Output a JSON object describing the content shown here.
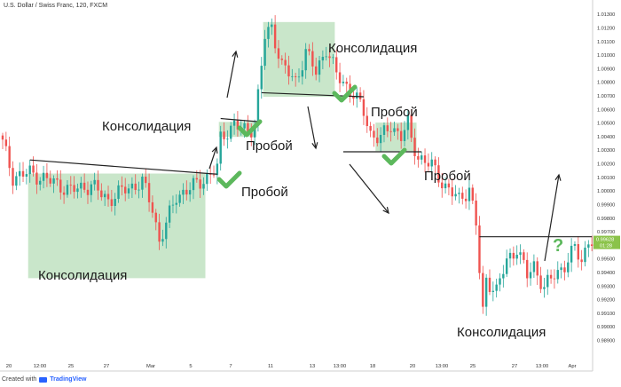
{
  "header": {
    "symbol": "U.S. Dollar / Swiss Franc, 120, FXCM"
  },
  "footer": {
    "created_with": "Created with",
    "brand": "TradingView"
  },
  "annotations": {
    "consolidation": "Консолидация",
    "breakout": "Пробой",
    "question": "?"
  },
  "colors": {
    "up_candle": "#26a69a",
    "down_candle": "#ef5350",
    "consolidation_box": "#a5d6a7",
    "check": "#5cb85c",
    "price_tag": "#8bc34a"
  },
  "chart_data": {
    "type": "candlestick",
    "instrument": "U.S. Dollar / Swiss Franc",
    "timeframe": "120",
    "source": "FXCM",
    "ylim": [
      0.9875,
      1.0135
    ],
    "y_ticks": [
      "1.01300",
      "1.01200",
      "1.01100",
      "1.01000",
      "1.00900",
      "1.00800",
      "1.00700",
      "1.00600",
      "1.00500",
      "1.00400",
      "1.00300",
      "1.00200",
      "1.00100",
      "1.00000",
      "0.99900",
      "0.99800",
      "0.99700",
      "0.99600",
      "0.99500",
      "0.99400",
      "0.99300",
      "0.99200",
      "0.99100",
      "0.99000",
      "0.98900"
    ],
    "x_ticks": [
      "20",
      "12:00",
      "25",
      "27",
      "Mar",
      "5",
      "7",
      "11",
      "13",
      "13:00",
      "18",
      "20",
      "13:00",
      "25",
      "27",
      "13:00",
      "Apr"
    ],
    "last_price": "0.99628",
    "last_price_sub": "01:28",
    "price_path": [
      [
        0,
        1.0035
      ],
      [
        3,
        1.001
      ],
      [
        8,
        1.0013
      ],
      [
        14,
        1.0007
      ],
      [
        20,
        1.0
      ],
      [
        26,
        1.0004
      ],
      [
        31,
        0.9993
      ],
      [
        36,
        1.0001
      ],
      [
        41,
        1.0006
      ],
      [
        44,
        0.9987
      ],
      [
        46,
        0.9963
      ],
      [
        48,
        0.9975
      ],
      [
        51,
        0.9996
      ],
      [
        56,
        1.0003
      ],
      [
        60,
        1.001
      ],
      [
        63,
        1.0016
      ],
      [
        64,
        1.0038
      ],
      [
        66,
        1.0044
      ],
      [
        68,
        1.0049
      ],
      [
        70,
        1.0045
      ],
      [
        72,
        1.0043
      ],
      [
        74,
        1.0049
      ],
      [
        77,
        1.0113
      ],
      [
        79,
        1.012
      ],
      [
        82,
        1.0092
      ],
      [
        86,
        1.008
      ],
      [
        89,
        1.0102
      ],
      [
        92,
        1.0087
      ],
      [
        95,
        1.0105
      ],
      [
        98,
        1.0085
      ],
      [
        101,
        1.0077
      ],
      [
        103,
        1.0071
      ],
      [
        106,
        1.0058
      ],
      [
        108,
        1.0042
      ],
      [
        111,
        1.0038
      ],
      [
        114,
        1.0048
      ],
      [
        117,
        1.004
      ],
      [
        119,
        1.0049
      ],
      [
        120,
        1.0037
      ],
      [
        122,
        1.0025
      ],
      [
        126,
        1.0018
      ],
      [
        130,
        1.0003
      ],
      [
        134,
        0.9993
      ],
      [
        137,
        1.0002
      ],
      [
        139,
        0.9975
      ],
      [
        140,
        0.994
      ],
      [
        141,
        0.991
      ],
      [
        142,
        0.9935
      ],
      [
        145,
        0.9926
      ],
      [
        148,
        0.9948
      ],
      [
        151,
        0.9958
      ],
      [
        154,
        0.9937
      ],
      [
        156,
        0.9945
      ],
      [
        159,
        0.9928
      ],
      [
        162,
        0.9938
      ],
      [
        165,
        0.9945
      ],
      [
        168,
        0.9957
      ],
      [
        170,
        0.9949
      ],
      [
        172,
        0.9963
      ]
    ],
    "consolidation_zones": [
      {
        "i0": 8,
        "i1": 59,
        "low": 0.99355,
        "high": 1.00125
      },
      {
        "i0": 64,
        "i1": 74,
        "low": 1.00395,
        "high": 1.00505
      },
      {
        "i0": 77,
        "i1": 97,
        "low": 1.0069,
        "high": 1.0124
      },
      {
        "i0": 110,
        "i1": 121,
        "low": 1.0029,
        "high": 1.005
      }
    ],
    "levels": [
      {
        "i0": 8,
        "i1": 63,
        "p0": 1.00225,
        "p1": 1.0012
      },
      {
        "i0": 64,
        "i1": 76,
        "p0": 1.0053,
        "p1": 1.00505
      },
      {
        "i0": 76,
        "i1": 106,
        "p0": 1.0072,
        "p1": 1.0069
      },
      {
        "i0": 100,
        "i1": 123,
        "p0": 1.00285,
        "p1": 1.00285
      },
      {
        "i0": 140,
        "i1": 173,
        "p0": 0.9966,
        "p1": 0.9966
      }
    ]
  }
}
